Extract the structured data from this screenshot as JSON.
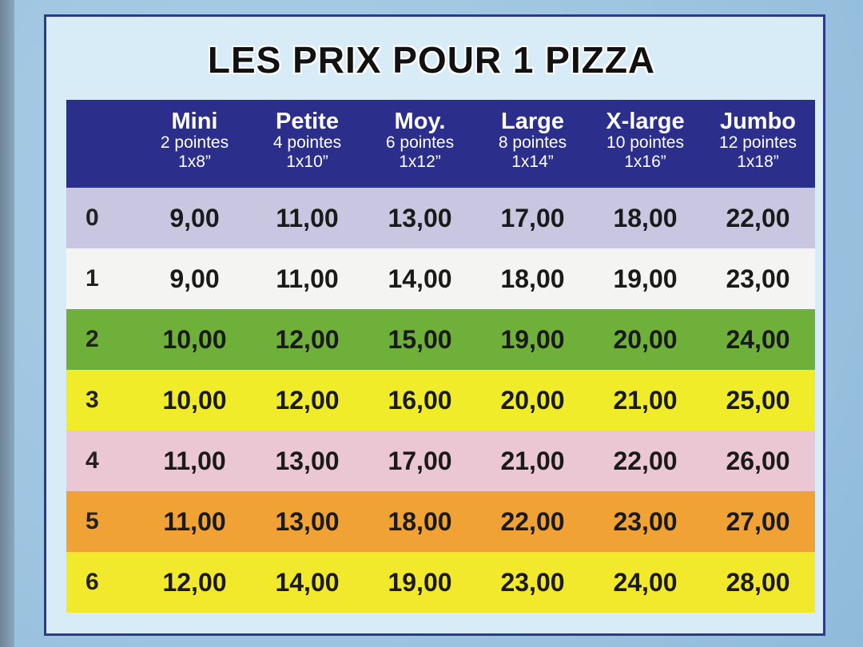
{
  "title": "LES PRIX POUR 1 PIZZA",
  "columns": [
    {
      "name": "Mini",
      "slices": "2 pointes",
      "size": "1x8”"
    },
    {
      "name": "Petite",
      "slices": "4 pointes",
      "size": "1x10”"
    },
    {
      "name": "Moy.",
      "slices": "6 pointes",
      "size": "1x12”"
    },
    {
      "name": "Large",
      "slices": "8 pointes",
      "size": "1x14”"
    },
    {
      "name": "X-large",
      "slices": "10 pointes",
      "size": "1x16”"
    },
    {
      "name": "Jumbo",
      "slices": "12 pointes",
      "size": "1x18”"
    }
  ],
  "rows": [
    {
      "label": "0",
      "color": "#c9c6e2",
      "prices": [
        "9,00",
        "11,00",
        "13,00",
        "17,00",
        "18,00",
        "22,00"
      ]
    },
    {
      "label": "1",
      "color": "#f4f4f2",
      "prices": [
        "9,00",
        "11,00",
        "14,00",
        "18,00",
        "19,00",
        "23,00"
      ]
    },
    {
      "label": "2",
      "color": "#6fb03a",
      "prices": [
        "10,00",
        "12,00",
        "15,00",
        "19,00",
        "20,00",
        "24,00"
      ]
    },
    {
      "label": "3",
      "color": "#f0ec2a",
      "prices": [
        "10,00",
        "12,00",
        "16,00",
        "20,00",
        "21,00",
        "25,00"
      ]
    },
    {
      "label": "4",
      "color": "#ebc7d4",
      "prices": [
        "11,00",
        "13,00",
        "17,00",
        "21,00",
        "22,00",
        "26,00"
      ]
    },
    {
      "label": "5",
      "color": "#f0a334",
      "prices": [
        "11,00",
        "13,00",
        "18,00",
        "22,00",
        "23,00",
        "27,00"
      ]
    },
    {
      "label": "6",
      "color": "#f3e92c",
      "prices": [
        "12,00",
        "14,00",
        "19,00",
        "23,00",
        "24,00",
        "28,00"
      ]
    }
  ],
  "colors": {
    "header": "#2b2e8a",
    "frame_border": "#2d3a8c"
  }
}
